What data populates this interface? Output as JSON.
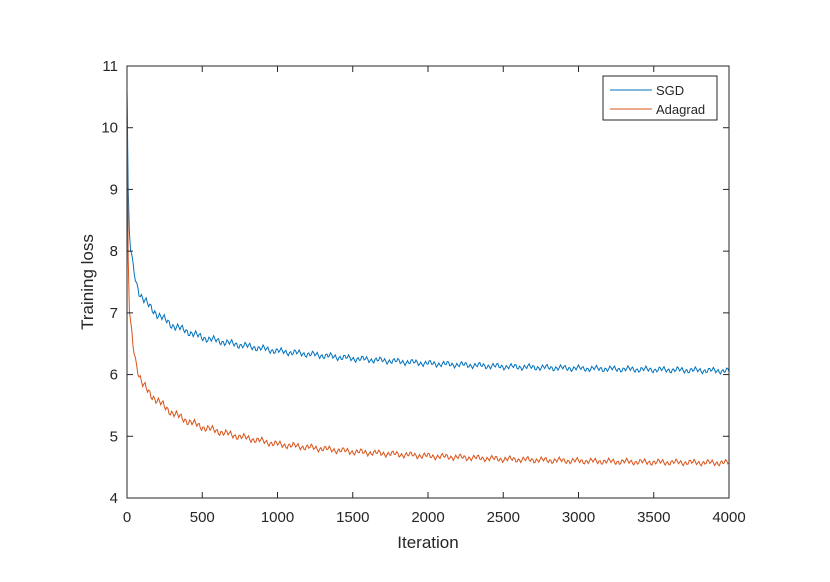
{
  "chart_data": {
    "type": "line",
    "xlabel": "Iteration",
    "ylabel": "Training loss",
    "xlim": [
      0,
      4000
    ],
    "ylim": [
      4,
      11
    ],
    "xticks": [
      0,
      500,
      1000,
      1500,
      2000,
      2500,
      3000,
      3500,
      4000
    ],
    "yticks": [
      4,
      5,
      6,
      7,
      8,
      9,
      10,
      11
    ],
    "xtick_labels": [
      "0",
      "500",
      "1000",
      "1500",
      "2000",
      "2500",
      "3000",
      "3500",
      "4000"
    ],
    "ytick_labels": [
      "4",
      "5",
      "6",
      "7",
      "8",
      "9",
      "10",
      "11"
    ],
    "grid": false,
    "legend_position": "top-right",
    "series": [
      {
        "name": "SGD",
        "color": "#0072BD",
        "x": [
          0,
          10,
          20,
          40,
          60,
          80,
          100,
          150,
          200,
          300,
          400,
          500,
          700,
          1000,
          1500,
          2000,
          2500,
          3000,
          3500,
          4000
        ],
        "values": [
          10.6,
          8.6,
          8.1,
          7.75,
          7.5,
          7.35,
          7.25,
          7.1,
          6.98,
          6.8,
          6.7,
          6.6,
          6.5,
          6.38,
          6.26,
          6.18,
          6.13,
          6.1,
          6.08,
          6.06
        ]
      },
      {
        "name": "Adagrad",
        "color": "#D95319",
        "x": [
          0,
          10,
          20,
          40,
          60,
          80,
          100,
          150,
          200,
          300,
          400,
          500,
          700,
          1000,
          1500,
          2000,
          2500,
          3000,
          3500,
          4000
        ],
        "values": [
          10.6,
          7.2,
          6.9,
          6.5,
          6.2,
          6.0,
          5.85,
          5.7,
          5.58,
          5.38,
          5.25,
          5.15,
          5.02,
          4.87,
          4.75,
          4.68,
          4.63,
          4.6,
          4.58,
          4.57
        ]
      }
    ]
  }
}
